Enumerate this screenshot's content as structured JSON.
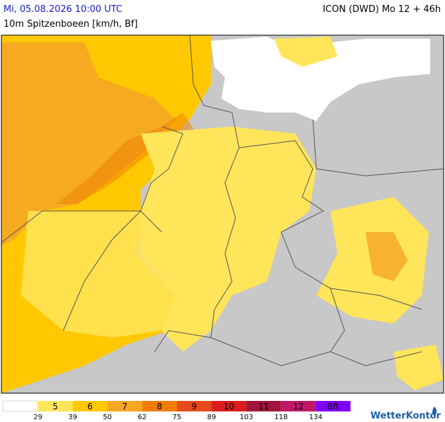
{
  "header": {
    "datetime": "Mi, 05.08.2026 10:00 UTC",
    "parameter": "10m Spitzenboeen [km/h, Bf]",
    "model": "ICON (DWD) Mo 12 + 46h"
  },
  "legend": {
    "classes": [
      {
        "label": "5",
        "color": "#ffe55a"
      },
      {
        "label": "6",
        "color": "#ffc800"
      },
      {
        "label": "7",
        "color": "#f5a623"
      },
      {
        "label": "8",
        "color": "#f07d00"
      },
      {
        "label": "9",
        "color": "#e64b1e"
      },
      {
        "label": "10",
        "color": "#dc1e1e"
      },
      {
        "label": "11",
        "color": "#a0143c"
      },
      {
        "label": "12",
        "color": "#c0186a"
      },
      {
        "label": "Bft",
        "color": "#8000ff"
      }
    ],
    "thresholds": [
      29,
      39,
      50,
      62,
      75,
      89,
      103,
      118,
      134
    ]
  },
  "logo": "WetterKontor"
}
